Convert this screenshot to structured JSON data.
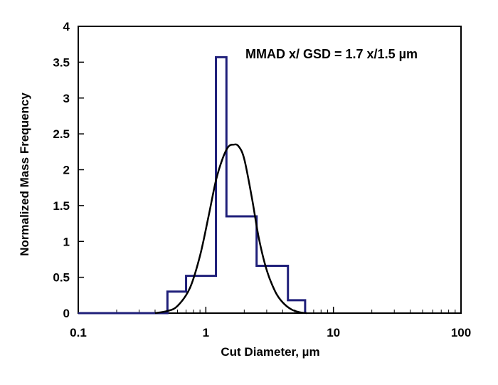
{
  "chart_data": {
    "type": "line",
    "title": "",
    "xlabel": "Cut Diameter, µm",
    "ylabel": "Normalized Mass Frequency",
    "xscale": "log",
    "xlim": [
      0.1,
      100
    ],
    "ylim": [
      0,
      4
    ],
    "x_ticks": [
      0.1,
      1,
      10,
      100
    ],
    "x_tick_labels": [
      "0.1",
      "1",
      "10",
      "100"
    ],
    "y_ticks": [
      0,
      0.5,
      1,
      1.5,
      2,
      2.5,
      3,
      3.5,
      4
    ],
    "y_tick_labels": [
      "0",
      "0.5",
      "1",
      "1.5",
      "2",
      "2.5",
      "3",
      "3.5",
      "4"
    ],
    "grid": false,
    "annotation": "MMAD x/ GSD = 1.7 x/1.5 µm",
    "series": [
      {
        "style": "step",
        "color": "#1f1f7a",
        "x": [
          0.1,
          0.2,
          0.5,
          0.5,
          0.7,
          0.7,
          1.2,
          1.2,
          1.45,
          1.45,
          2.5,
          2.5,
          4.4,
          4.4,
          6.0,
          6.0
        ],
        "y": [
          0,
          0,
          0,
          0.3,
          0.3,
          0.52,
          0.52,
          3.57,
          3.57,
          1.35,
          1.35,
          0.66,
          0.66,
          0.18,
          0.18,
          0
        ]
      },
      {
        "style": "smooth",
        "color": "#000000",
        "x": [
          0.4,
          0.5,
          0.6,
          0.75,
          0.9,
          1.05,
          1.2,
          1.35,
          1.5,
          1.65,
          1.8,
          2.0,
          2.3,
          2.6,
          3.0,
          3.5,
          4.0,
          4.7,
          5.5,
          6.2
        ],
        "y": [
          0,
          0.03,
          0.1,
          0.35,
          0.8,
          1.35,
          1.85,
          2.15,
          2.32,
          2.35,
          2.33,
          2.15,
          1.6,
          1.05,
          0.6,
          0.3,
          0.15,
          0.05,
          0.01,
          0
        ]
      }
    ]
  }
}
